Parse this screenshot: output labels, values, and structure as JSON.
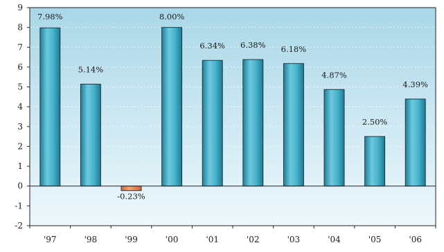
{
  "chart_data": {
    "type": "bar",
    "categories": [
      "'97",
      "'98",
      "'99",
      "'00",
      "'01",
      "'02",
      "'03",
      "'04",
      "'05",
      "'06"
    ],
    "values": [
      7.98,
      5.14,
      -0.23,
      8.0,
      6.34,
      6.38,
      6.18,
      4.87,
      2.5,
      4.39
    ],
    "data_labels": [
      "7.98%",
      "5.14%",
      "-0.23%",
      "8.00%",
      "6.34%",
      "6.38%",
      "6.18%",
      "4.87%",
      "2.50%",
      "4.39%"
    ],
    "y_ticks": [
      9,
      8,
      7,
      6,
      5,
      4,
      3,
      2,
      1,
      0,
      -1,
      -2
    ],
    "ylim": [
      -2,
      9
    ],
    "grid": true,
    "legend": "none",
    "colors": {
      "positive_bar": "#3aa9c4",
      "negative_bar": "#ee8a55",
      "plot_background_top": "#a9d7e8",
      "plot_background_bottom": "#eef8fc",
      "axis": "#222222"
    }
  }
}
